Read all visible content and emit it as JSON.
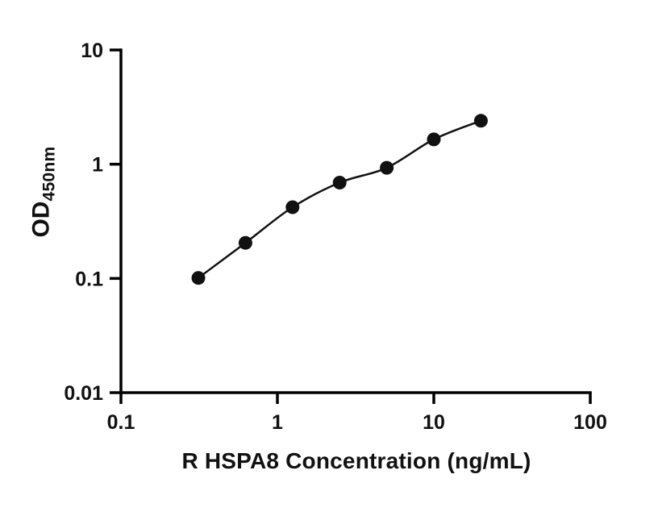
{
  "chart_data": {
    "type": "scatter",
    "title": "",
    "xlabel": "R HSPA8 Concentration (ng/mL)",
    "ylabel_main": "OD",
    "ylabel_sub": "450nm",
    "x_scale": "log",
    "y_scale": "log",
    "xlim": [
      0.1,
      100
    ],
    "ylim": [
      0.01,
      10
    ],
    "x_ticks": [
      0.1,
      1,
      10,
      100
    ],
    "x_tick_labels": [
      "0.1",
      "1",
      "10",
      "100"
    ],
    "y_ticks": [
      0.01,
      0.1,
      1,
      10
    ],
    "y_tick_labels": [
      "0.01",
      "0.1",
      "1",
      "10"
    ],
    "grid": false,
    "legend": "none",
    "trend_line": true,
    "points": {
      "x": [
        0.3125,
        0.625,
        1.25,
        2.5,
        5,
        10,
        20
      ],
      "y": [
        0.101,
        0.205,
        0.42,
        0.69,
        0.93,
        1.65,
        2.4
      ]
    },
    "colors": {
      "axis": "#000000",
      "point": "#111111",
      "line": "#111111",
      "text": "#111111"
    }
  }
}
